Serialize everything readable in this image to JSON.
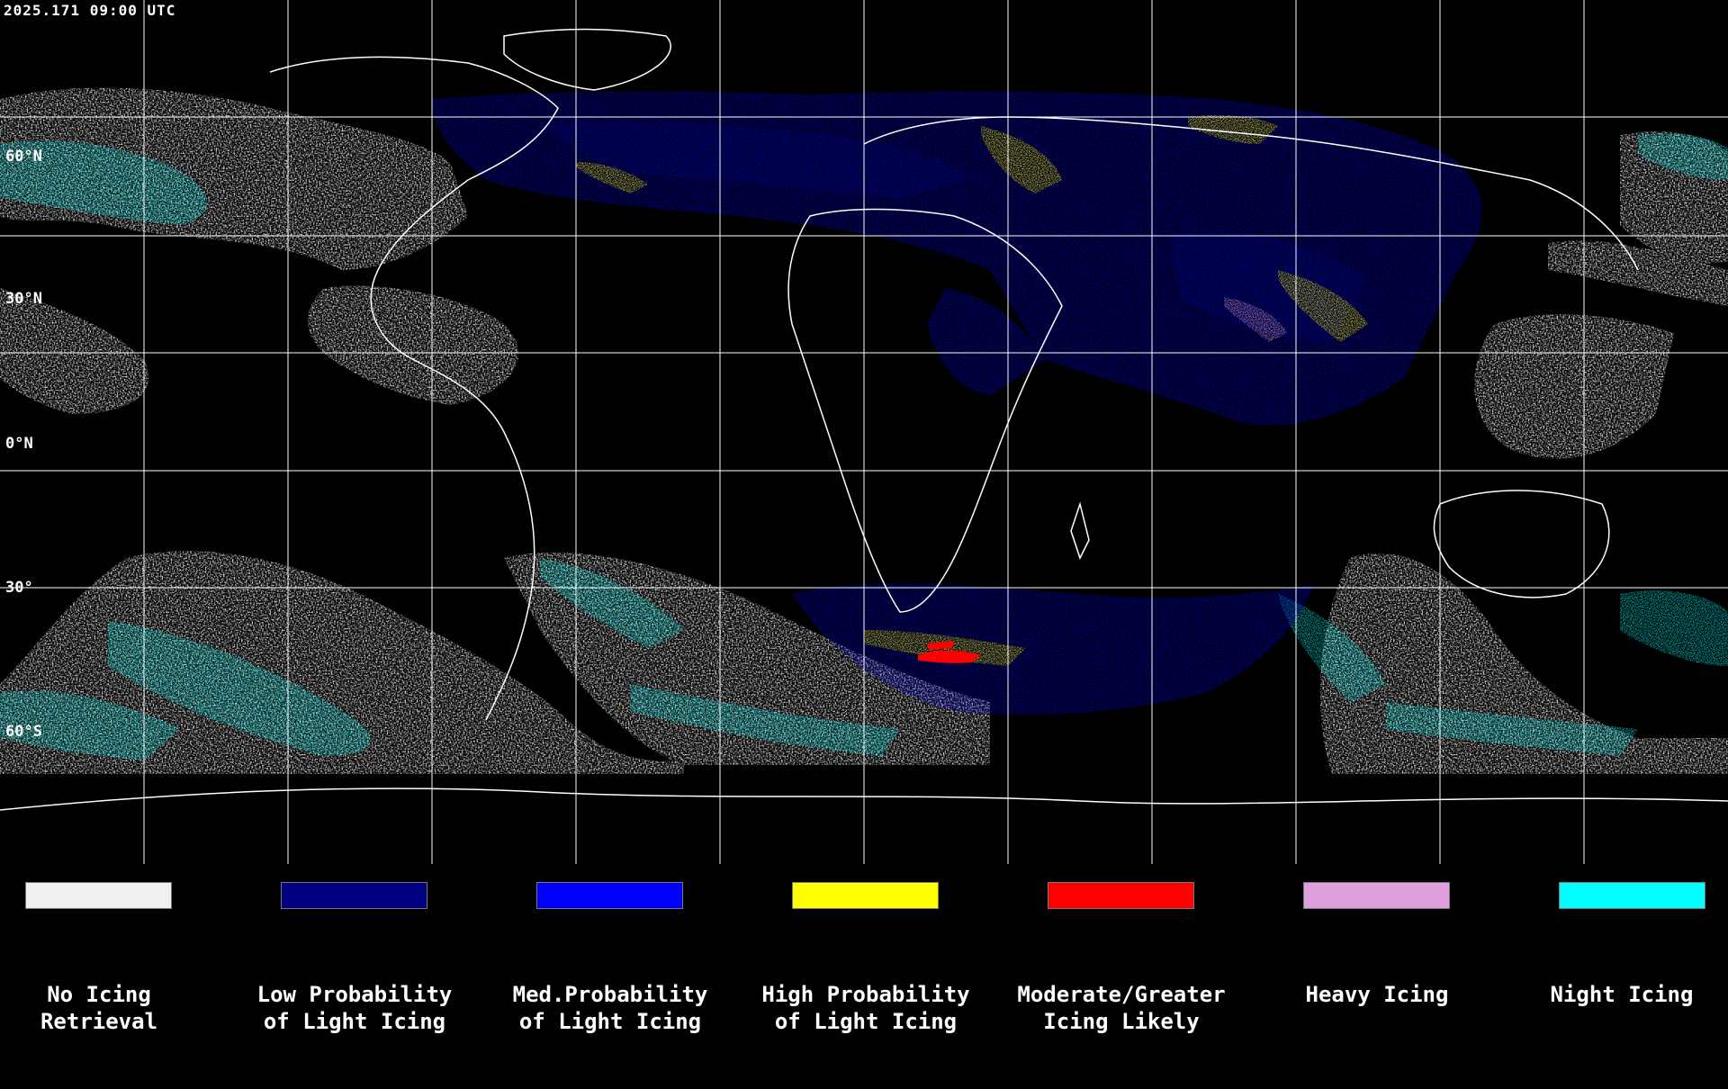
{
  "timestamp": "2025.171 09:00 UTC",
  "lat_labels": [
    "60°N",
    "30°N",
    "0°N",
    "30°",
    "60°S"
  ],
  "legend": [
    {
      "line1": "No Icing",
      "line2": "Retrieval",
      "color": "#f0f0f0"
    },
    {
      "line1": "Low Probability",
      "line2": "of Light Icing",
      "color": "#000080"
    },
    {
      "line1": "Med.Probability",
      "line2": "of Light Icing",
      "color": "#0000ff"
    },
    {
      "line1": "High Probability",
      "line2": "of Light Icing",
      "color": "#ffff00"
    },
    {
      "line1": "Moderate/Greater",
      "line2": "Icing Likely",
      "color": "#ff0000"
    },
    {
      "line1": "Heavy Icing",
      "line2": "",
      "color": "#e0a0e0"
    },
    {
      "line1": "Night Icing",
      "line2": "",
      "color": "#00ffff"
    }
  ],
  "colors": {
    "no_icing": "#f0f0f0",
    "low": "#000080",
    "med": "#0000ff",
    "high": "#ffff00",
    "moderate": "#ff0000",
    "heavy": "#e0a0e0",
    "night": "#00ffff",
    "grid": "#ffffff",
    "background": "#000000"
  }
}
